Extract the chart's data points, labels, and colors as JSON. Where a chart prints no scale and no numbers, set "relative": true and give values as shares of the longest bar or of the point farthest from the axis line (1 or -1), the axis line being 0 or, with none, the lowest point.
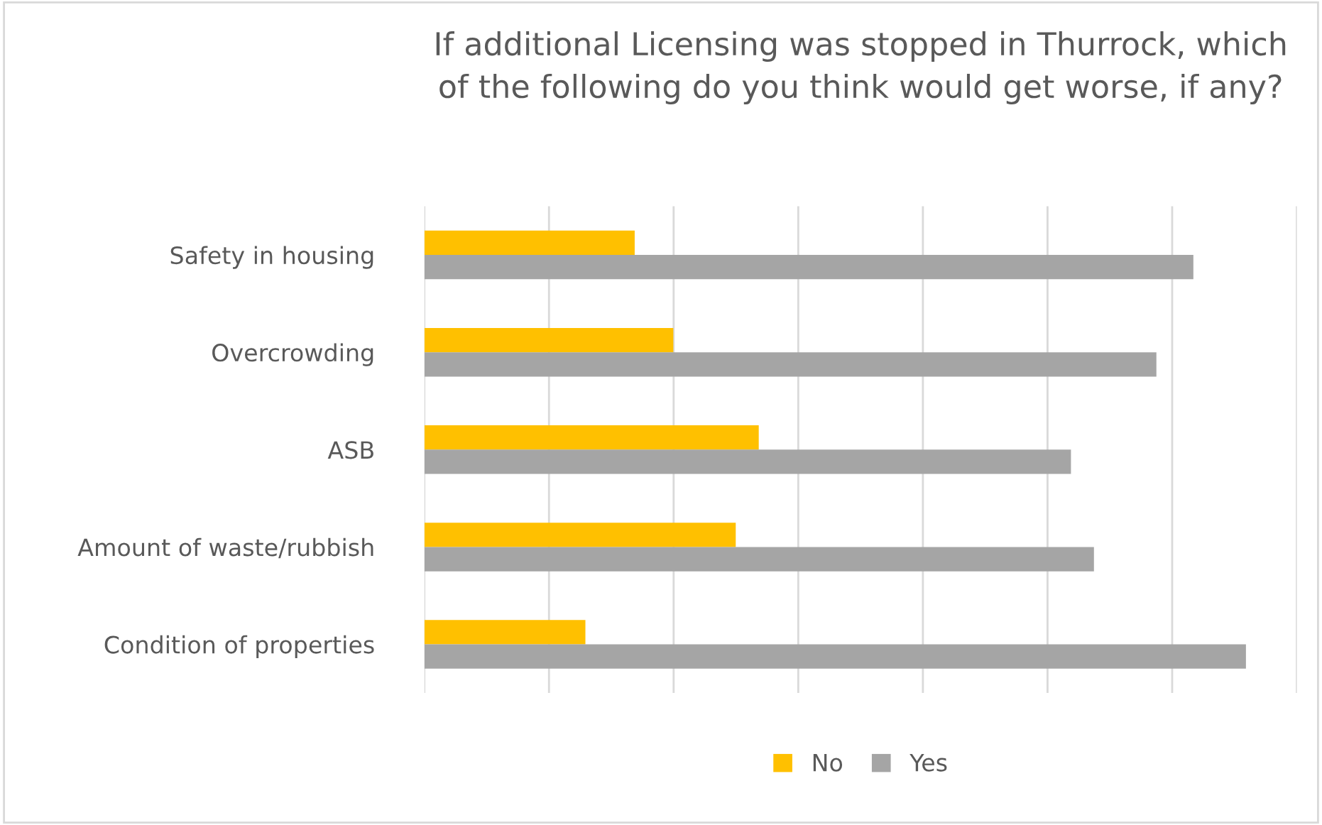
{
  "chart_data": {
    "type": "bar",
    "orientation": "horizontal",
    "relative": true,
    "title": "If additional Licensing was stopped in Thurrock, which\nof the following do you think would get worse, if any?",
    "categories": [
      "Safety in housing",
      "Overcrowding",
      "ASB",
      "Amount of waste/rubbish",
      "Condition of properties"
    ],
    "series": [
      {
        "name": "No",
        "color": "#ffc000",
        "values": [
          0.256,
          0.303,
          0.407,
          0.379,
          0.196
        ]
      },
      {
        "name": "Yes",
        "color": "#a5a5a5",
        "values": [
          0.936,
          0.891,
          0.787,
          0.815,
          1.0
        ]
      }
    ],
    "grid": "x",
    "legend": "bottom"
  }
}
